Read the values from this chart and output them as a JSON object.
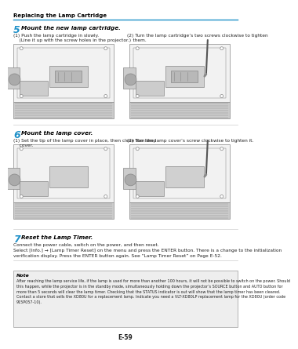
{
  "page_header": "Replacing the Lamp Cartridge",
  "header_line_color": "#1e90c8",
  "background_color": "#ffffff",
  "page_number": "E-59",
  "step5_number": "5",
  "step5_title": "Mount the new lamp cartridge.",
  "step5_sub1": "(1) Push the lamp cartridge in slowly.",
  "step5_sub1b": "    (Line it up with the screw holes in the projector.)",
  "step5_sub2": "(2) Turn the lamp cartridge’s two screws clockwise to tighten\n    them.",
  "step6_number": "6",
  "step6_title": "Mount the lamp cover.",
  "step6_sub1": "(1) Set the tip of the lamp cover in place, then close the lamp\n    cover.",
  "step6_sub2": "(2) Turn the lamp cover’s screw clockwise to tighten it.",
  "step7_number": "7",
  "step7_title": "Reset the Lamp Timer.",
  "step7_line1": "Connect the power cable, switch on the power, and then reset.",
  "step7_line2": "Select [Info.] → [Lamp Timer Reset] on the menu and press the ENTER button. There is a change to the initialization",
  "step7_line3": "verification display. Press the ENTER button again. See “Lamp Timer Reset” on Page E-52.",
  "note_title": "Note",
  "note_body": "After reaching the lamp service life, if the lamp is used for more than another 100 hours, it will not be possible to switch on the power. Should\nthis happen, while the projector is in the standby mode, simultaneously holding down the projector’s SOURCE button and AUTO button for\nmore than 5 seconds will clear the lamp timer. Checking that the STATUS indicator is out will show that the lamp timer has been cleared.\nContact a store that sells the XD80U for a replacement lamp. Indicate you need a VLT-XD80LP replacement lamp for the XD80U (order code\n915P057-10).",
  "title_color": "#000000",
  "step_num_color": "#1e90c8",
  "text_color": "#222222",
  "note_bg": "#eeeeee",
  "note_border": "#aaaaaa",
  "proj_body": "#f2f2f2",
  "proj_edge": "#888888",
  "proj_dark": "#cccccc",
  "proj_darker": "#aaaaaa"
}
